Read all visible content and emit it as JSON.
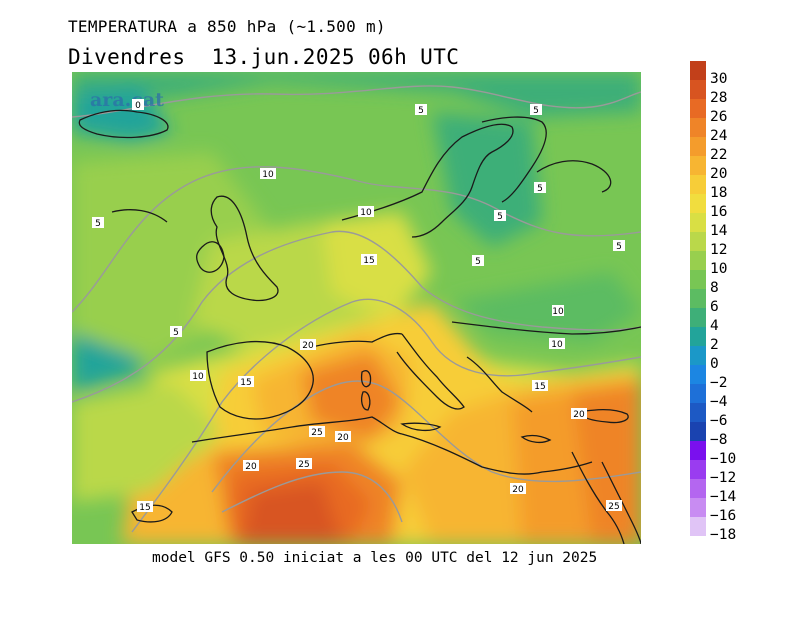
{
  "title": "TEMPERATURA a 850 hPa (~1.500 m)",
  "subtitle": "Divendres  13.jun.2025 06h UTC",
  "footer": "model GFS 0.50 iniciat a les 00 UTC del 12 jun 2025",
  "watermark": "ara.cat",
  "colorbar": [
    {
      "label": "30",
      "color": "#c2401a"
    },
    {
      "label": "28",
      "color": "#d85420"
    },
    {
      "label": "26",
      "color": "#e86a24"
    },
    {
      "label": "24",
      "color": "#ef8428"
    },
    {
      "label": "22",
      "color": "#f49c2c"
    },
    {
      "label": "20",
      "color": "#f7b532"
    },
    {
      "label": "18",
      "color": "#f7cd38"
    },
    {
      "label": "16",
      "color": "#f1dd3e"
    },
    {
      "label": "14",
      "color": "#d9df44"
    },
    {
      "label": "12",
      "color": "#bad84a"
    },
    {
      "label": "10",
      "color": "#98cf4e"
    },
    {
      "label": "8",
      "color": "#78c654"
    },
    {
      "label": "6",
      "color": "#5cbc62"
    },
    {
      "label": "4",
      "color": "#3eaf78"
    },
    {
      "label": "2",
      "color": "#22a49a"
    },
    {
      "label": "0",
      "color": "#1b98c8"
    },
    {
      "label": "−2",
      "color": "#1c86e2"
    },
    {
      "label": "−4",
      "color": "#1e70d8"
    },
    {
      "label": "−6",
      "color": "#1d59c4"
    },
    {
      "label": "−8",
      "color": "#1a43b0"
    },
    {
      "label": "−10",
      "color": "#7a10ee"
    },
    {
      "label": "−12",
      "color": "#9a3cf0"
    },
    {
      "label": "−14",
      "color": "#b466f0"
    },
    {
      "label": "−16",
      "color": "#c88cf2"
    },
    {
      "label": "−18",
      "color": "#e0c4f6"
    }
  ],
  "contour_labels": [
    "0",
    "5",
    "5",
    "5",
    "5",
    "5",
    "5",
    "5",
    "5",
    "10",
    "10",
    "10",
    "10",
    "10",
    "15",
    "15",
    "15",
    "15",
    "20",
    "20",
    "20",
    "20",
    "20",
    "25",
    "25",
    "25"
  ]
}
